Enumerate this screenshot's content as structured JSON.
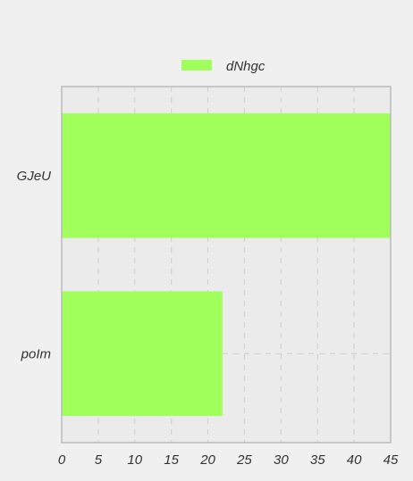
{
  "chart_data": {
    "type": "bar",
    "orientation": "horizontal",
    "categories": [
      "GJeU",
      "poIm"
    ],
    "series": [
      {
        "name": "dNhgc",
        "values": [
          45,
          22
        ]
      }
    ],
    "xlim": [
      0,
      45
    ],
    "xticks": [
      0,
      5,
      10,
      15,
      20,
      25,
      30,
      35,
      40,
      45
    ],
    "grid": true,
    "legend_position": "top-center",
    "colors": {
      "bar": "#a0ff5a",
      "background": "#f0f0f0",
      "plot_background": "#ebebeb",
      "grid": "#cccccc",
      "frame": "#bbbbbb",
      "text": "#333333"
    }
  }
}
